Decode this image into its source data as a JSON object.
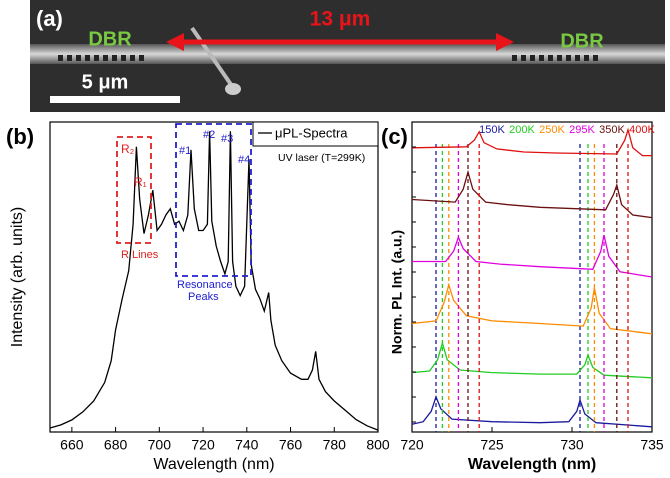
{
  "panel_a": {
    "label": "(a)",
    "left_mirror": "DBR",
    "length": "13 μm",
    "right_mirror": "DBR",
    "scale_bar": "5 μm"
  },
  "chart_data": [
    {
      "type": "line",
      "label": "(b)",
      "x_label": "Wavelength (nm)",
      "y_label": "Intensity (arb. units)",
      "xlim": [
        650,
        800
      ],
      "xticks": [
        660,
        680,
        700,
        720,
        740,
        760,
        780,
        800
      ],
      "ylim": [
        0,
        100
      ],
      "series_name": "μPL-Spectra",
      "legend_note": "UV laser (T=299K)",
      "color": "#000000",
      "x": [
        650,
        655,
        660,
        665,
        670,
        675,
        678,
        680,
        683,
        686,
        688,
        689.5,
        691,
        693,
        695,
        697,
        699,
        701,
        703,
        705,
        707,
        709,
        711,
        713,
        714.5,
        716,
        718,
        720,
        722,
        723,
        724,
        726,
        728,
        730,
        731.5,
        732.5,
        733.5,
        735,
        737,
        739,
        741,
        742,
        744,
        746,
        748,
        750,
        751,
        753,
        756,
        760,
        765,
        768,
        770,
        771.5,
        773,
        776,
        780,
        785,
        790,
        795,
        800
      ],
      "values": [
        1.3,
        2.3,
        3.9,
        6.5,
        10,
        16,
        23,
        33,
        43,
        52,
        67,
        92,
        75,
        64,
        70,
        78,
        65,
        67,
        70,
        72,
        67,
        68,
        65,
        70,
        91,
        72,
        65,
        65,
        67,
        97,
        68,
        60,
        55,
        51,
        55,
        97,
        55,
        47,
        44,
        47,
        88,
        54,
        46,
        43,
        39,
        45,
        36,
        28,
        23,
        19,
        17,
        17,
        20,
        26,
        17,
        13,
        10,
        7,
        4,
        2,
        0.6
      ],
      "annotations": [
        {
          "text": "R₂",
          "color": "#e02020"
        },
        {
          "text": "R₁",
          "color": "#e02020"
        },
        {
          "text": "R Lines",
          "color": "#e02020"
        },
        {
          "text": "#1",
          "color": "#2020d0"
        },
        {
          "text": "#2",
          "color": "#2020d0"
        },
        {
          "text": "#3",
          "color": "#2020d0"
        },
        {
          "text": "#4",
          "color": "#2020d0"
        },
        {
          "text": "Resonance",
          "color": "#2020d0"
        },
        {
          "text": "Peaks",
          "color": "#2020d0"
        }
      ]
    },
    {
      "type": "line",
      "label": "(c)",
      "x_label": "Wavelength (nm)",
      "y_label": "Norm. PL Int. (a.u.)",
      "xlim": [
        720,
        735
      ],
      "xticks": [
        720,
        725,
        730,
        735
      ],
      "ylim": [
        0,
        6
      ],
      "series": [
        {
          "name": "150K",
          "color": "#1a1aa0",
          "peaks": [
            721.5,
            730.5
          ],
          "x": [
            720,
            720.7,
            721.2,
            721.5,
            721.8,
            722.5,
            725,
            728,
            729.8,
            730.3,
            730.5,
            730.8,
            731.5,
            735
          ],
          "values": [
            0.15,
            0.2,
            0.4,
            0.68,
            0.45,
            0.25,
            0.2,
            0.18,
            0.2,
            0.4,
            0.62,
            0.35,
            0.18,
            0.1
          ]
        },
        {
          "name": "200K",
          "color": "#22cc22",
          "peaks": [
            721.9,
            731.0
          ],
          "x": [
            720,
            721.1,
            721.6,
            721.9,
            722.2,
            723,
            725,
            728,
            730.3,
            730.8,
            731,
            731.3,
            732,
            735
          ],
          "values": [
            1.15,
            1.18,
            1.4,
            1.72,
            1.4,
            1.2,
            1.15,
            1.12,
            1.12,
            1.3,
            1.49,
            1.25,
            1.1,
            1.05
          ]
        },
        {
          "name": "250K",
          "color": "#ff8c00",
          "peaks": [
            722.3,
            731.4
          ],
          "x": [
            720,
            721.5,
            722,
            722.3,
            722.6,
            723.4,
            725,
            728,
            730.7,
            731.2,
            731.4,
            731.7,
            732.4,
            735
          ],
          "values": [
            2.1,
            2.15,
            2.5,
            2.85,
            2.55,
            2.25,
            2.15,
            2.1,
            2.05,
            2.4,
            2.79,
            2.3,
            2.0,
            1.9
          ]
        },
        {
          "name": "295K",
          "color": "#e000e0",
          "peaks": [
            722.9,
            732.0
          ],
          "x": [
            720,
            722.1,
            722.6,
            722.9,
            723.2,
            724,
            725.5,
            728,
            731.3,
            731.8,
            732,
            732.3,
            733,
            735
          ],
          "values": [
            3.3,
            3.3,
            3.5,
            3.77,
            3.55,
            3.3,
            3.25,
            3.2,
            3.15,
            3.5,
            3.81,
            3.4,
            3.1,
            3.0
          ]
        },
        {
          "name": "350K",
          "color": "#6b1010",
          "peaks": [
            723.5,
            732.8
          ],
          "x": [
            720,
            722.7,
            723.2,
            723.5,
            723.8,
            724.6,
            726,
            728,
            732.1,
            732.6,
            732.8,
            733.1,
            733.8,
            735
          ],
          "values": [
            4.5,
            4.45,
            4.7,
            5.03,
            4.7,
            4.45,
            4.4,
            4.35,
            4.3,
            4.6,
            4.78,
            4.4,
            4.2,
            4.15
          ]
        },
        {
          "name": "400K",
          "color": "#e01010",
          "peaks": [
            724.2,
            733.5
          ],
          "x": [
            720,
            723.4,
            723.9,
            724.2,
            724.5,
            725.3,
            727,
            729,
            732.8,
            733.3,
            733.5,
            733.8,
            734.4,
            735
          ],
          "values": [
            5.5,
            5.52,
            5.65,
            5.81,
            5.6,
            5.48,
            5.42,
            5.4,
            5.38,
            5.65,
            5.85,
            5.5,
            5.35,
            5.35
          ]
        }
      ]
    }
  ]
}
